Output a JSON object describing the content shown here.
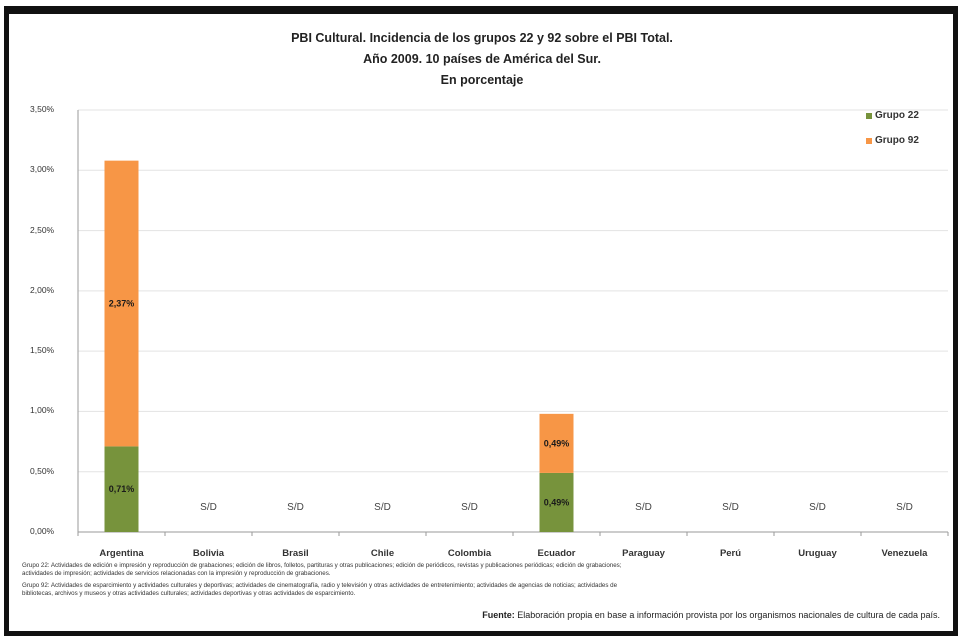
{
  "chart_data": {
    "type": "bar",
    "stacked": true,
    "title_lines": [
      "PBI Cultural. Incidencia de los grupos 22 y 92 sobre el PBI Total.",
      "Año 2009. 10 países de América del Sur.",
      "En porcentaje"
    ],
    "categories": [
      "Argentina",
      "Bolivia",
      "Brasil",
      "Chile",
      "Colombia",
      "Ecuador",
      "Paraguay",
      "Perú",
      "Uruguay",
      "Venezuela"
    ],
    "series": [
      {
        "name": "Grupo 22",
        "color": "#77933c",
        "values": [
          0.71,
          null,
          null,
          null,
          null,
          0.49,
          null,
          null,
          null,
          null
        ],
        "labels": [
          "0,71%",
          "",
          "",
          "",
          "",
          "0,49%",
          "",
          "",
          "",
          ""
        ]
      },
      {
        "name": "Grupo 92",
        "color": "#f79646",
        "values": [
          2.37,
          null,
          null,
          null,
          null,
          0.49,
          null,
          null,
          null,
          null
        ],
        "labels": [
          "2,37%",
          "",
          "",
          "",
          "",
          "0,49%",
          "",
          "",
          "",
          ""
        ]
      }
    ],
    "na_label": "S/D",
    "y_ticks": [
      "0,00%",
      "0,50%",
      "1,00%",
      "1,50%",
      "2,00%",
      "2,50%",
      "3,00%",
      "3,50%"
    ],
    "ylim": [
      0,
      3.5
    ],
    "grid": true,
    "legend_position": "top-right"
  },
  "footnotes": [
    "Grupo 22: Actividades de edición e impresión y reproducción de grabaciones; edición de libros, folletos, partituras y otras publicaciones; edición de periódicos, revistas y publicaciones periódicas; edición de grabaciones;",
    "actividades de impresión; actividades de servicios relacionadas con la impresión y reproducción de grabaciones.",
    "Grupo 92: Actividades de esparcimiento y actividades culturales y deportivas; actividades de cinematografía, radio y televisión y otras actividades de entretenimiento; actividades de agencias de noticias; actividades de",
    "bibliotecas, archivos y museos y otras actividades culturales; actividades deportivas y otras actividades de esparcimiento."
  ],
  "source": {
    "label": "Fuente:",
    "text": "Elaboración propia en base a información provista por los organismos nacionales de cultura de cada país."
  }
}
